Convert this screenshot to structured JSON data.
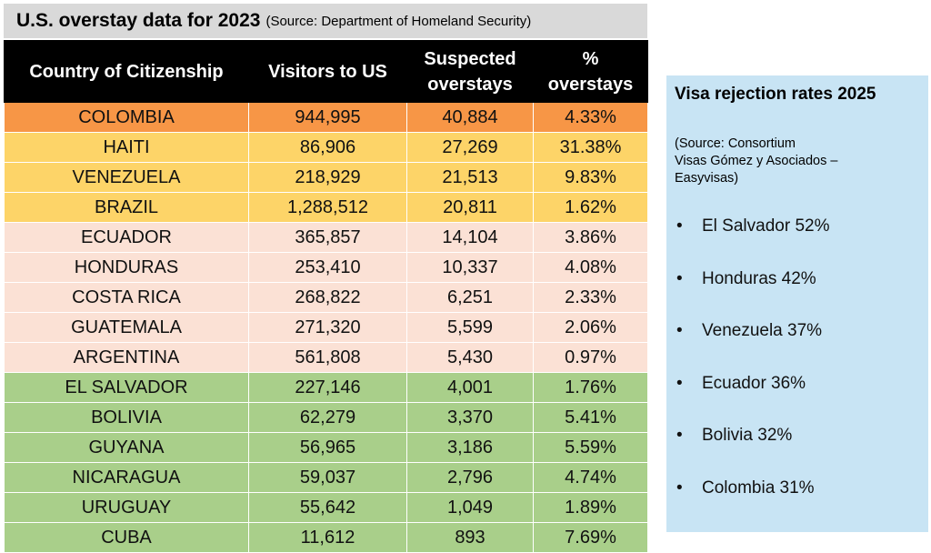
{
  "header": {
    "title": "U.S. overstay data for 2023",
    "source": "(Source: Department of Homeland Security)"
  },
  "chart_data": [
    {
      "type": "table",
      "title": "U.S. overstay data for 2023",
      "subtitle": "(Source: Department of Homeland Security)",
      "columns": [
        "Country of Citizenship",
        [
          "Visitors to US"
        ],
        [
          "Suspected",
          "overstays"
        ],
        [
          "%",
          "overstays"
        ]
      ],
      "rows": [
        {
          "country": "COLOMBIA",
          "visitors": "944,995",
          "overstays": "40,884",
          "pct": "4.33%",
          "tier": "orange"
        },
        {
          "country": "HAITI",
          "visitors": "86,906",
          "overstays": "27,269",
          "pct": "31.38%",
          "tier": "yellow"
        },
        {
          "country": "VENEZUELA",
          "visitors": "218,929",
          "overstays": "21,513",
          "pct": "9.83%",
          "tier": "yellow"
        },
        {
          "country": "BRAZIL",
          "visitors": "1,288,512",
          "overstays": "20,811",
          "pct": "1.62%",
          "tier": "yellow"
        },
        {
          "country": "ECUADOR",
          "visitors": "365,857",
          "overstays": "14,104",
          "pct": "3.86%",
          "tier": "peach"
        },
        {
          "country": "HONDURAS",
          "visitors": "253,410",
          "overstays": "10,337",
          "pct": "4.08%",
          "tier": "peach"
        },
        {
          "country": "COSTA RICA",
          "visitors": "268,822",
          "overstays": "6,251",
          "pct": "2.33%",
          "tier": "peach"
        },
        {
          "country": "GUATEMALA",
          "visitors": "271,320",
          "overstays": "5,599",
          "pct": "2.06%",
          "tier": "peach"
        },
        {
          "country": "ARGENTINA",
          "visitors": "561,808",
          "overstays": "5,430",
          "pct": "0.97%",
          "tier": "peach"
        },
        {
          "country": "EL SALVADOR",
          "visitors": "227,146",
          "overstays": "4,001",
          "pct": "1.76%",
          "tier": "green"
        },
        {
          "country": "BOLIVIA",
          "visitors": "62,279",
          "overstays": "3,370",
          "pct": "5.41%",
          "tier": "green"
        },
        {
          "country": "GUYANA",
          "visitors": "56,965",
          "overstays": "3,186",
          "pct": "5.59%",
          "tier": "green"
        },
        {
          "country": "NICARAGUA",
          "visitors": "59,037",
          "overstays": "2,796",
          "pct": "4.74%",
          "tier": "green"
        },
        {
          "country": "URUGUAY",
          "visitors": "55,642",
          "overstays": "1,049",
          "pct": "1.89%",
          "tier": "green"
        },
        {
          "country": "CUBA",
          "visitors": "11,612",
          "overstays": "893",
          "pct": "7.69%",
          "tier": "green"
        }
      ],
      "tier_colors": {
        "orange": "#f79646",
        "yellow": "#fdd468",
        "peach": "#fbe1d5",
        "green": "#a9cf8a"
      },
      "header_color": "#000000"
    },
    {
      "type": "table",
      "title": "Visa rejection rates 2025",
      "source_lines": [
        "(Source: Consortium",
        "Visas Gómez y Asociados –",
        "Easyvisas)"
      ],
      "items": [
        "El Salvador 52%",
        "Honduras 42%",
        "Venezuela 37%",
        "Ecuador 36%",
        "Bolivia 32%",
        "Colombia 31%"
      ],
      "panel_color": "#c8e4f4"
    }
  ]
}
